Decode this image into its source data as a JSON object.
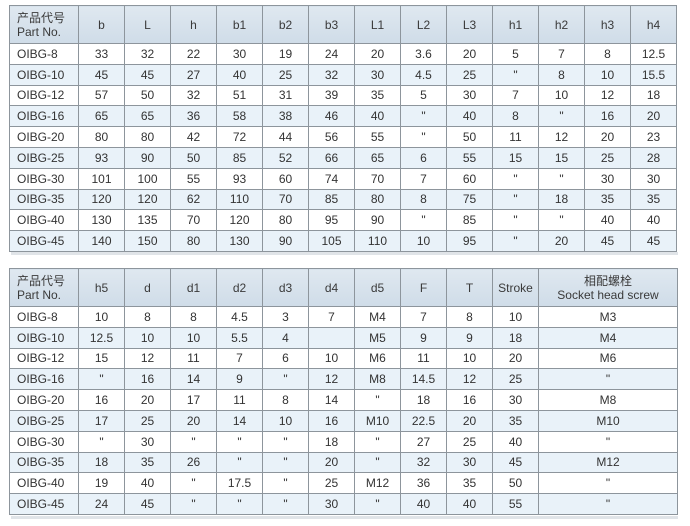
{
  "table1": {
    "headers": [
      "产品代号\nPart No.",
      "b",
      "L",
      "h",
      "b1",
      "b2",
      "b3",
      "L1",
      "L2",
      "L3",
      "h1",
      "h2",
      "h3",
      "h4"
    ],
    "rows": [
      [
        "OIBG-8",
        "33",
        "32",
        "22",
        "30",
        "19",
        "24",
        "20",
        "3.6",
        "20",
        "5",
        "7",
        "8",
        "12.5"
      ],
      [
        "OIBG-10",
        "45",
        "45",
        "27",
        "40",
        "25",
        "32",
        "30",
        "4.5",
        "25",
        "\"",
        "8",
        "10",
        "15.5"
      ],
      [
        "OIBG-12",
        "57",
        "50",
        "32",
        "51",
        "31",
        "39",
        "35",
        "5",
        "30",
        "7",
        "10",
        "12",
        "18"
      ],
      [
        "OIBG-16",
        "65",
        "65",
        "36",
        "58",
        "38",
        "46",
        "40",
        "\"",
        "40",
        "8",
        "\"",
        "16",
        "20"
      ],
      [
        "OIBG-20",
        "80",
        "80",
        "42",
        "72",
        "44",
        "56",
        "55",
        "\"",
        "50",
        "11",
        "12",
        "20",
        "23"
      ],
      [
        "OIBG-25",
        "93",
        "90",
        "50",
        "85",
        "52",
        "66",
        "65",
        "6",
        "55",
        "15",
        "15",
        "25",
        "28"
      ],
      [
        "OIBG-30",
        "101",
        "100",
        "55",
        "93",
        "60",
        "74",
        "70",
        "7",
        "60",
        "\"",
        "\"",
        "30",
        "30"
      ],
      [
        "OIBG-35",
        "120",
        "120",
        "62",
        "110",
        "70",
        "85",
        "80",
        "8",
        "75",
        "\"",
        "18",
        "35",
        "35"
      ],
      [
        "OIBG-40",
        "130",
        "135",
        "70",
        "120",
        "80",
        "95",
        "90",
        "\"",
        "85",
        "\"",
        "\"",
        "40",
        "40"
      ],
      [
        "OIBG-45",
        "140",
        "150",
        "80",
        "130",
        "90",
        "105",
        "110",
        "10",
        "95",
        "\"",
        "20",
        "45",
        "45"
      ]
    ]
  },
  "table2": {
    "headers": [
      "产品代号\nPart No.",
      "h5",
      "d",
      "d1",
      "d2",
      "d3",
      "d4",
      "d5",
      "F",
      "T",
      "Stroke",
      "相配螺栓\nSocket head screw"
    ],
    "rows": [
      [
        "OIBG-8",
        "10",
        "8",
        "8",
        "4.5",
        "3",
        "7",
        "M4",
        "7",
        "8",
        "10",
        "M3"
      ],
      [
        "OIBG-10",
        "12.5",
        "10",
        "10",
        "5.5",
        "4",
        "",
        "M5",
        "9",
        "9",
        "18",
        "M4"
      ],
      [
        "OIBG-12",
        "15",
        "12",
        "11",
        "7",
        "6",
        "10",
        "M6",
        "11",
        "10",
        "20",
        "M6"
      ],
      [
        "OIBG-16",
        "\"",
        "16",
        "14",
        "9",
        "\"",
        "12",
        "M8",
        "14.5",
        "12",
        "25",
        "\""
      ],
      [
        "OIBG-20",
        "16",
        "20",
        "17",
        "11",
        "8",
        "14",
        "\"",
        "18",
        "16",
        "30",
        "M8"
      ],
      [
        "OIBG-25",
        "17",
        "25",
        "20",
        "14",
        "10",
        "16",
        "M10",
        "22.5",
        "20",
        "35",
        "M10"
      ],
      [
        "OIBG-30",
        "\"",
        "30",
        "\"",
        "\"",
        "\"",
        "18",
        "\"",
        "27",
        "25",
        "40",
        "\""
      ],
      [
        "OIBG-35",
        "18",
        "35",
        "26",
        "\"",
        "\"",
        "20",
        "\"",
        "32",
        "30",
        "45",
        "M12"
      ],
      [
        "OIBG-40",
        "19",
        "40",
        "\"",
        "17.5",
        "\"",
        "25",
        "M12",
        "36",
        "35",
        "50",
        "\""
      ],
      [
        "OIBG-45",
        "24",
        "45",
        "\"",
        "\"",
        "\"",
        "30",
        "\"",
        "40",
        "40",
        "55",
        "\""
      ]
    ]
  }
}
